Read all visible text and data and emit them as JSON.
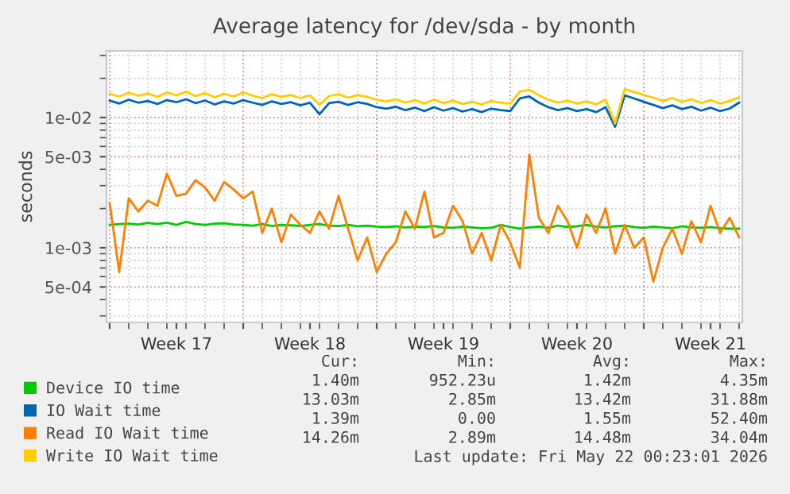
{
  "chart_data": {
    "type": "line",
    "title": "Average latency for /dev/sda - by month",
    "ylabel": "seconds",
    "x": [
      "2026-04-19T00:00",
      "2026-04-19T12:00",
      "2026-04-20T00:00",
      "2026-04-20T12:00",
      "2026-04-21T00:00",
      "2026-04-21T12:00",
      "2026-04-22T00:00",
      "2026-04-22T12:00",
      "2026-04-23T00:00",
      "2026-04-23T12:00",
      "2026-04-24T00:00",
      "2026-04-24T12:00",
      "2026-04-25T00:00",
      "2026-04-25T12:00",
      "2026-04-26T00:00",
      "2026-04-26T12:00",
      "2026-04-27T00:00",
      "2026-04-27T12:00",
      "2026-04-28T00:00",
      "2026-04-28T12:00",
      "2026-04-29T00:00",
      "2026-04-29T12:00",
      "2026-04-30T00:00",
      "2026-04-30T12:00",
      "2026-05-01T00:00",
      "2026-05-01T12:00",
      "2026-05-02T00:00",
      "2026-05-02T12:00",
      "2026-05-03T00:00",
      "2026-05-03T12:00",
      "2026-05-04T00:00",
      "2026-05-04T12:00",
      "2026-05-05T00:00",
      "2026-05-05T12:00",
      "2026-05-06T00:00",
      "2026-05-06T12:00",
      "2026-05-07T00:00",
      "2026-05-07T12:00",
      "2026-05-08T00:00",
      "2026-05-08T12:00",
      "2026-05-09T00:00",
      "2026-05-09T12:00",
      "2026-05-10T00:00",
      "2026-05-10T12:00",
      "2026-05-11T00:00",
      "2026-05-11T12:00",
      "2026-05-12T00:00",
      "2026-05-12T12:00",
      "2026-05-13T00:00",
      "2026-05-13T12:00",
      "2026-05-14T00:00",
      "2026-05-14T12:00",
      "2026-05-15T00:00",
      "2026-05-15T12:00",
      "2026-05-16T00:00",
      "2026-05-16T12:00",
      "2026-05-17T00:00",
      "2026-05-17T12:00",
      "2026-05-18T00:00",
      "2026-05-18T12:00",
      "2026-05-19T00:00",
      "2026-05-19T12:00",
      "2026-05-20T00:00",
      "2026-05-20T12:00",
      "2026-05-21T00:00",
      "2026-05-21T12:00",
      "2026-05-22T00:00"
    ],
    "series": [
      {
        "name": "Device IO time",
        "color": "#00cc00",
        "values": [
          0.0015,
          0.00152,
          0.00153,
          0.00151,
          0.00155,
          0.00152,
          0.00156,
          0.0015,
          0.00158,
          0.00152,
          0.0015,
          0.00153,
          0.00154,
          0.00151,
          0.0015,
          0.00148,
          0.00152,
          0.00147,
          0.0015,
          0.00149,
          0.00147,
          0.0015,
          0.00152,
          0.00148,
          0.00147,
          0.0015,
          0.00146,
          0.00148,
          0.00145,
          0.00144,
          0.00146,
          0.00143,
          0.00145,
          0.00144,
          0.00147,
          0.00143,
          0.00142,
          0.00145,
          0.00143,
          0.00141,
          0.00142,
          0.0015,
          0.00144,
          0.0014,
          0.00143,
          0.00145,
          0.00142,
          0.00148,
          0.00144,
          0.00146,
          0.0015,
          0.00145,
          0.00143,
          0.00146,
          0.00148,
          0.00144,
          0.00142,
          0.00145,
          0.00143,
          0.00141,
          0.00146,
          0.00143,
          0.00142,
          0.00144,
          0.00141,
          0.0014,
          0.0014
        ]
      },
      {
        "name": "IO Wait time",
        "color": "#0066b3",
        "values": [
          0.0135,
          0.0128,
          0.0137,
          0.013,
          0.0134,
          0.0127,
          0.0136,
          0.0131,
          0.0138,
          0.0129,
          0.0135,
          0.0126,
          0.0133,
          0.0128,
          0.0136,
          0.013,
          0.0125,
          0.0133,
          0.0127,
          0.0131,
          0.0124,
          0.013,
          0.0106,
          0.0129,
          0.0132,
          0.0125,
          0.0131,
          0.0127,
          0.012,
          0.0117,
          0.0121,
          0.0114,
          0.0119,
          0.0112,
          0.012,
          0.0113,
          0.0118,
          0.0111,
          0.0116,
          0.011,
          0.0117,
          0.0114,
          0.0112,
          0.014,
          0.0145,
          0.013,
          0.012,
          0.0114,
          0.0118,
          0.0112,
          0.0116,
          0.011,
          0.012,
          0.0085,
          0.0148,
          0.014,
          0.0132,
          0.0125,
          0.0118,
          0.0124,
          0.0116,
          0.0121,
          0.0113,
          0.0119,
          0.0112,
          0.0117,
          0.013
        ]
      },
      {
        "name": "Read IO Wait time",
        "color": "#ff8000",
        "values": [
          0.0022,
          0.00065,
          0.0024,
          0.0019,
          0.0023,
          0.0021,
          0.0037,
          0.0025,
          0.0026,
          0.0033,
          0.0029,
          0.0023,
          0.0032,
          0.0028,
          0.0024,
          0.0027,
          0.0013,
          0.002,
          0.0011,
          0.0018,
          0.0015,
          0.0013,
          0.0019,
          0.0014,
          0.0025,
          0.0014,
          0.0008,
          0.0012,
          0.00065,
          0.0009,
          0.0011,
          0.0019,
          0.0014,
          0.0027,
          0.0012,
          0.0013,
          0.0021,
          0.0016,
          0.0009,
          0.0013,
          0.0008,
          0.0015,
          0.0011,
          0.0007,
          0.0052,
          0.0017,
          0.0013,
          0.0021,
          0.0016,
          0.001,
          0.0018,
          0.0013,
          0.002,
          0.0009,
          0.0015,
          0.001,
          0.0012,
          0.00055,
          0.001,
          0.0014,
          0.0009,
          0.0016,
          0.0011,
          0.0021,
          0.0013,
          0.0017,
          0.0012
        ]
      },
      {
        "name": "Write IO Wait time",
        "color": "#ffcc00",
        "values": [
          0.0152,
          0.0145,
          0.0155,
          0.0147,
          0.0153,
          0.0144,
          0.0156,
          0.0148,
          0.0158,
          0.0146,
          0.0154,
          0.0143,
          0.0152,
          0.0145,
          0.0156,
          0.0147,
          0.0141,
          0.0151,
          0.0144,
          0.0149,
          0.0141,
          0.0148,
          0.0125,
          0.0146,
          0.0151,
          0.0142,
          0.0149,
          0.0144,
          0.0137,
          0.0133,
          0.0138,
          0.013,
          0.0136,
          0.0128,
          0.0137,
          0.0129,
          0.0135,
          0.0127,
          0.0132,
          0.0126,
          0.0134,
          0.013,
          0.0128,
          0.0158,
          0.0163,
          0.0148,
          0.0137,
          0.013,
          0.0135,
          0.0128,
          0.0133,
          0.0126,
          0.0137,
          0.009,
          0.0165,
          0.0157,
          0.0149,
          0.0142,
          0.0134,
          0.0141,
          0.0132,
          0.0138,
          0.0129,
          0.0136,
          0.0128,
          0.0134,
          0.0143
        ]
      }
    ],
    "log": true,
    "ylim": [
      0.000267,
      0.0325
    ],
    "yticks": [
      {
        "value": 0.01,
        "label": "1e-02"
      },
      {
        "value": 0.005,
        "label": "5e-03"
      },
      {
        "value": 0.001,
        "label": "1e-03"
      },
      {
        "value": 0.0005,
        "label": "5e-04"
      }
    ],
    "xlim": [
      "2026-04-18T20:00",
      "2026-05-22T04:00"
    ],
    "xticks": [
      {
        "value": "2026-04-19",
        "label": null
      },
      {
        "value": "2026-04-22T12:00",
        "label": "Week 17"
      },
      {
        "value": "2026-04-26",
        "label": null
      },
      {
        "value": "2026-04-29T12:00",
        "label": "Week 18"
      },
      {
        "value": "2026-05-03",
        "label": null
      },
      {
        "value": "2026-05-06T12:00",
        "label": "Week 19"
      },
      {
        "value": "2026-05-10",
        "label": null
      },
      {
        "value": "2026-05-13T12:00",
        "label": "Week 20"
      },
      {
        "value": "2026-05-17",
        "label": null
      },
      {
        "value": "2026-05-20T12:00",
        "label": "Week 21"
      }
    ],
    "grid": true,
    "legend": "bottom",
    "annotations": [
      "Cur:",
      "Min:",
      "Avg:",
      "Max:",
      "1.40m",
      "952.23u",
      "1.42m",
      "4.35m",
      "13.03m",
      "2.85m",
      "13.42m",
      "31.88m",
      "1.39m",
      "0.00",
      "1.55m",
      "52.40m",
      "14.26m",
      "2.89m",
      "14.48m",
      "34.04m",
      "Last update: Fri May 22 00:23:01 2026"
    ]
  }
}
